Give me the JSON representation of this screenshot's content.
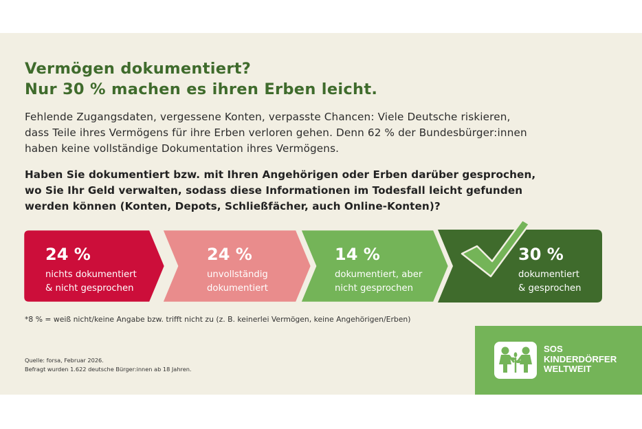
{
  "title": {
    "line1": "Vermögen dokumentiert?",
    "line2": "Nur 30 % machen es ihren Erben leicht."
  },
  "intro": {
    "line1": "Fehlende Zugangsdaten, vergessene Konten, verpasste Chancen: Viele Deutsche riskieren,",
    "line2": "dass Teile ihres Vermögens für ihre Erben verloren gehen. Denn 62 % der Bundesbürger:innen",
    "line3": "haben keine vollständige Dokumentation ihres Vermögens."
  },
  "question": {
    "line1": "Haben Sie dokumentiert bzw. mit Ihren Angehörigen oder Erben darüber gesprochen,",
    "line2": "wo Sie Ihr Geld verwalten, sodass diese Informationen im Todesfall leicht gefunden",
    "line3": "werden können (Konten, Depots, Schließfächer, auch Online-Konten)?"
  },
  "chart_data": {
    "type": "bar",
    "title": "",
    "unit": "%",
    "segments": [
      {
        "value": 24,
        "value_label": "24 %",
        "label_lines": [
          "nichts dokumentiert",
          "& nicht gesprochen"
        ],
        "color": "#cc0e3a"
      },
      {
        "value": 24,
        "value_label": "24 %",
        "label_lines": [
          "unvollständig",
          "dokumentiert"
        ],
        "color": "#e98c8c"
      },
      {
        "value": 14,
        "value_label": "14 %",
        "label_lines": [
          "dokumentiert, aber",
          "nicht gesprochen"
        ],
        "color": "#74b458"
      },
      {
        "value": 30,
        "value_label": "30 %",
        "label_lines": [
          "dokumentiert",
          "& gesprochen"
        ],
        "color": "#3f6b2c"
      }
    ],
    "checkmark_on": "30 %",
    "checkmark_color": "#74b458"
  },
  "footnote": "*8 % = weiß nicht/keine Angabe bzw. trifft nicht zu (z. B. keinerlei Vermögen, keine Angehörigen/Erben)",
  "source": {
    "line1": "Quelle: forsa, Februar 2026.",
    "line2": "Befragt wurden 1.622 deutsche Bürger:innen ab 18 Jahren."
  },
  "logo": {
    "line1": "SOS",
    "line2": "KINDERDÖRFER",
    "line3": "WELTWEIT",
    "icon": "sos-children-logo-icon"
  },
  "colors": {
    "background": "#f2efe3",
    "title_green": "#3f6b2c",
    "logo_green": "#74b458"
  }
}
